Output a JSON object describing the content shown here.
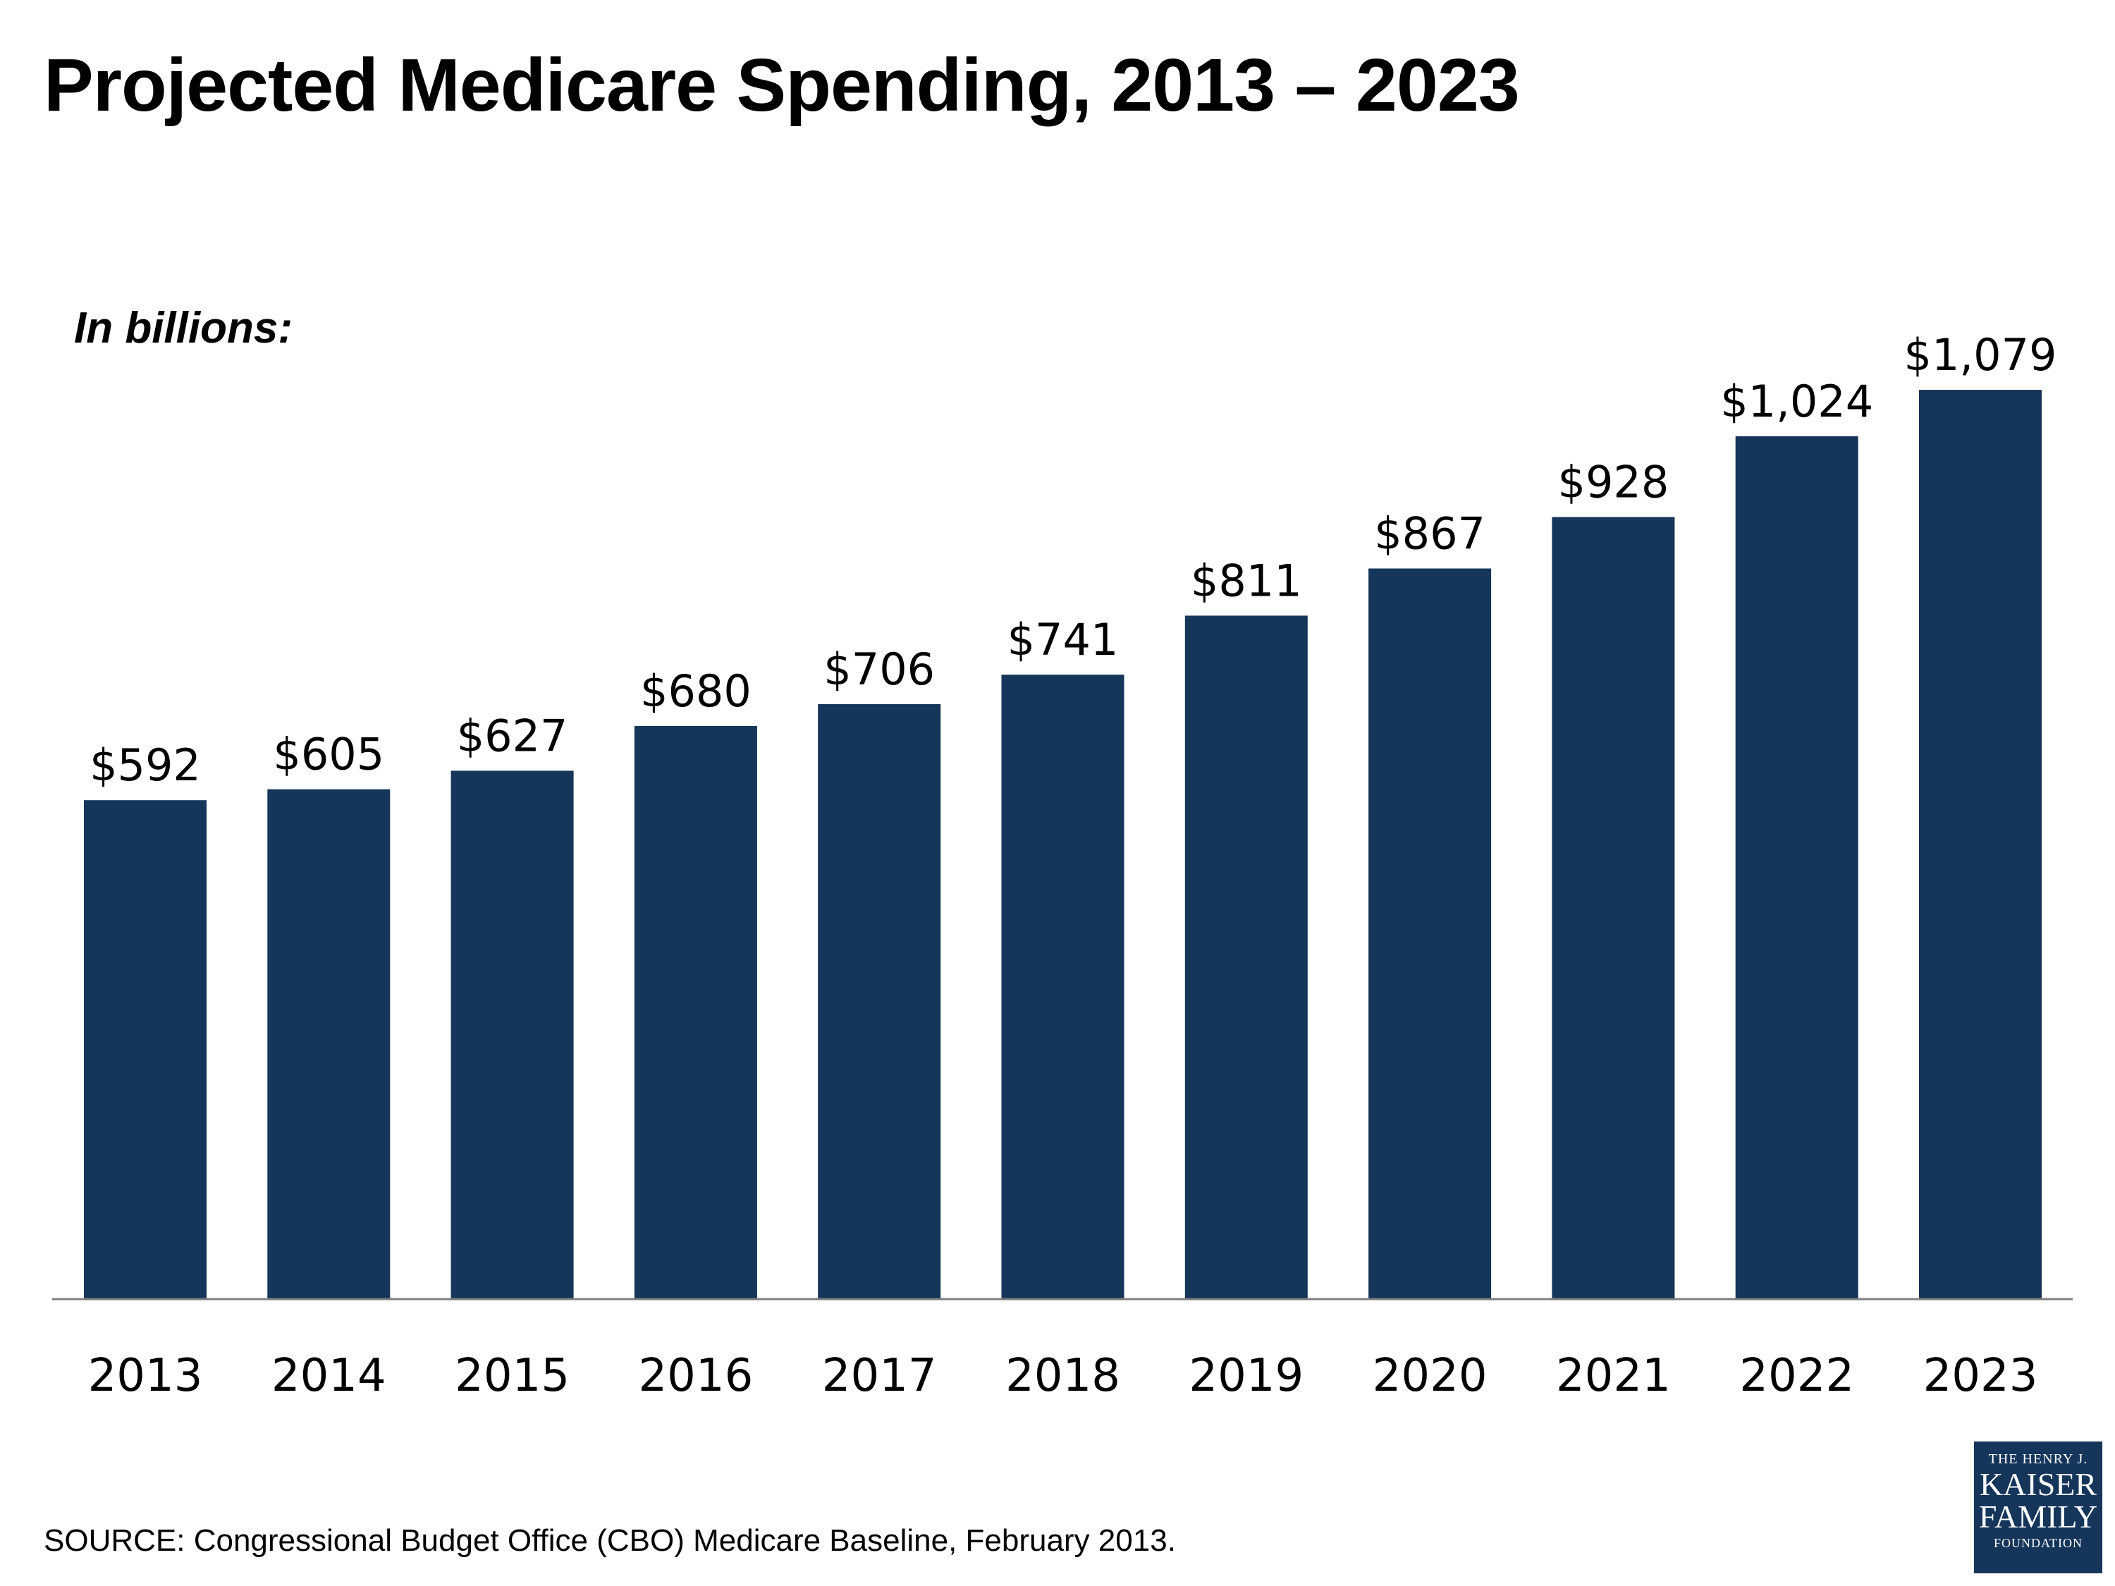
{
  "title": "Projected Medicare Spending, 2013 – 2023",
  "source": "SOURCE: Congressional Budget Office (CBO) Medicare Baseline, February 2013.",
  "logo": {
    "line1": "THE HENRY J.",
    "line2": "KAISER",
    "line3": "FAMILY",
    "line4": "FOUNDATION"
  },
  "colors": {
    "bar": "#15355a",
    "axis": "#7f7f7f",
    "text": "#000000"
  },
  "chart_data": {
    "type": "bar",
    "title": "Projected Medicare Spending, 2013 – 2023",
    "subtitle": "In billions:",
    "xlabel": "",
    "ylabel": "",
    "ylim": [
      0,
      1079
    ],
    "grid": false,
    "categories": [
      "2013",
      "2014",
      "2015",
      "2016",
      "2017",
      "2018",
      "2019",
      "2020",
      "2021",
      "2022",
      "2023"
    ],
    "values": [
      592,
      605,
      627,
      680,
      706,
      741,
      811,
      867,
      928,
      1024,
      1079
    ],
    "labels": [
      "$592",
      "$605",
      "$627",
      "$680",
      "$706",
      "$741",
      "$811",
      "$867",
      "$928",
      "$1,024",
      "$1,079"
    ]
  }
}
